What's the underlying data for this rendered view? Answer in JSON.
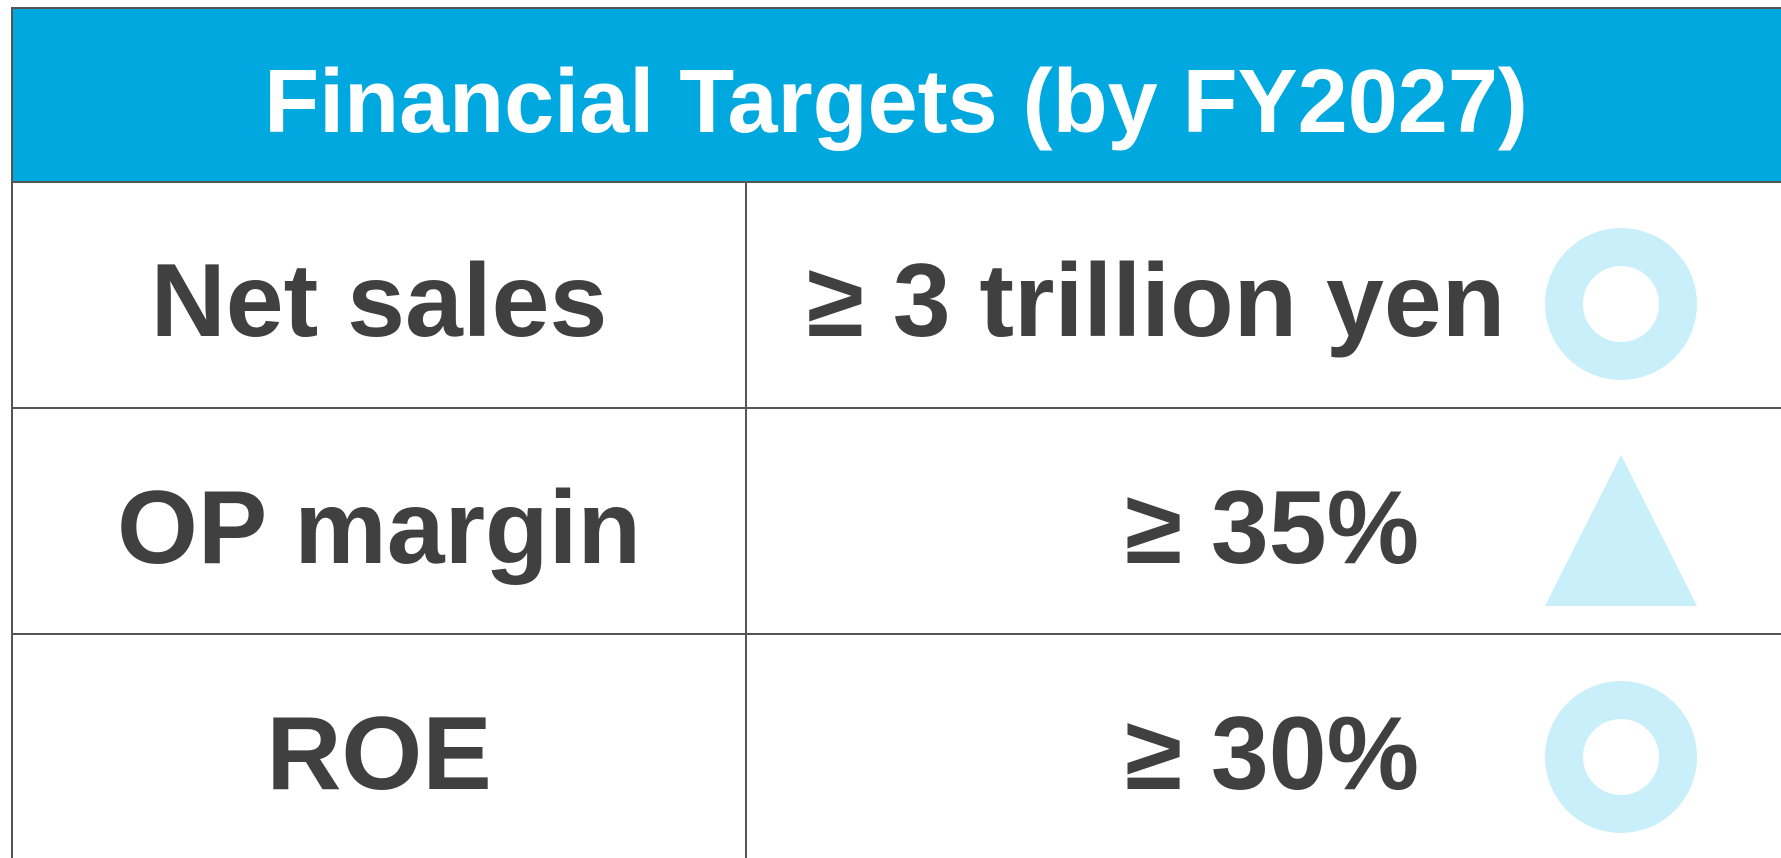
{
  "header": {
    "title": "Financial Targets (by FY2027)"
  },
  "table": {
    "rows": [
      [
        "Net sales",
        "≥ 3 trillion yen"
      ],
      [
        "OP margin",
        "≥ 35%"
      ],
      [
        "ROE",
        "≥ 30%"
      ]
    ]
  }
}
